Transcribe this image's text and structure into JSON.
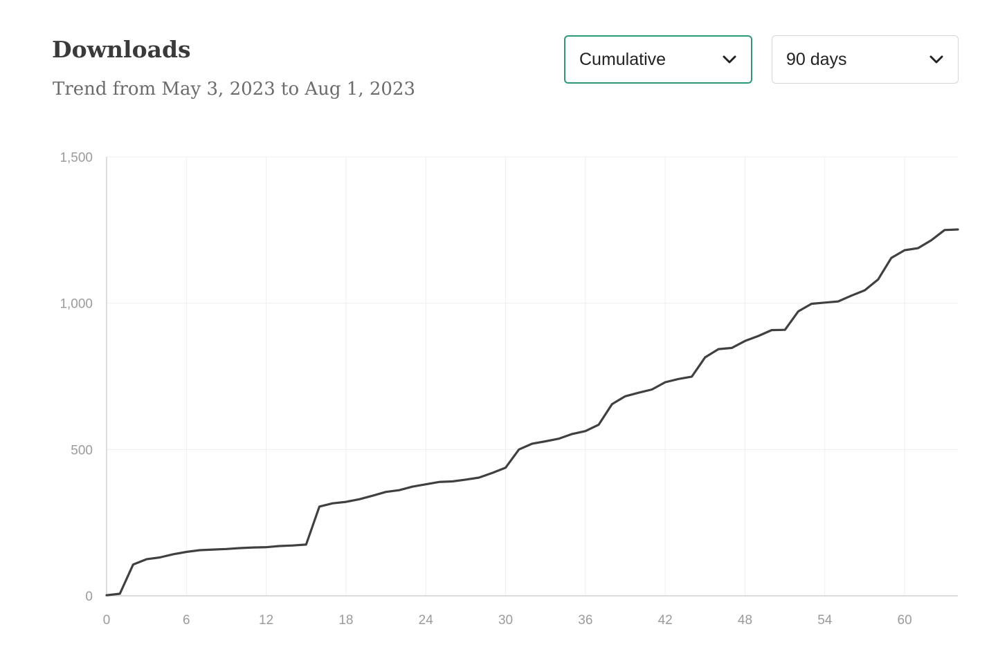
{
  "header": {
    "title": "Downloads",
    "subtitle": "Trend from May 3, 2023 to Aug 1, 2023"
  },
  "controls": {
    "mode": {
      "value": "Cumulative",
      "icon": "chevron-down-icon",
      "accent": "#2a9a72"
    },
    "range": {
      "value": "90 days",
      "icon": "chevron-down-icon"
    }
  },
  "chart_data": {
    "type": "line",
    "title": "Downloads",
    "xlabel": "",
    "ylabel": "",
    "xlim": [
      0,
      64
    ],
    "ylim": [
      0,
      1500
    ],
    "x_ticks": [
      "0",
      "6",
      "12",
      "18",
      "24",
      "30",
      "36",
      "42",
      "48",
      "54",
      "60"
    ],
    "y_ticks": [
      "0",
      "500",
      "1,000",
      "1,500"
    ],
    "grid": true,
    "line_color": "#404040",
    "series": [
      {
        "x": [
          0,
          1,
          2,
          3,
          4,
          5,
          6,
          7,
          8,
          9,
          10,
          11,
          12,
          13,
          14,
          15,
          16,
          17,
          18,
          19,
          20,
          21,
          22,
          23,
          24,
          25,
          26,
          27,
          28,
          29,
          30,
          31,
          32,
          33,
          34,
          35,
          36,
          37,
          38,
          39,
          40,
          41,
          42,
          43,
          44,
          45,
          46,
          47,
          48,
          49,
          50,
          51,
          52,
          53,
          54,
          55,
          56,
          57,
          58,
          59,
          60,
          61,
          62,
          63,
          64
        ],
        "values": [
          2,
          7,
          107,
          125,
          131,
          142,
          150,
          156,
          158,
          160,
          163,
          165,
          166,
          170,
          172,
          175,
          305,
          316,
          321,
          330,
          342,
          355,
          361,
          373,
          381,
          389,
          391,
          397,
          404,
          420,
          438,
          500,
          520,
          528,
          537,
          553,
          563,
          585,
          655,
          682,
          694,
          705,
          730,
          741,
          749,
          815,
          843,
          847,
          871,
          888,
          908,
          909,
          972,
          998,
          1002,
          1006,
          1026,
          1044,
          1081,
          1155,
          1181,
          1188,
          1215,
          1250,
          1252
        ]
      }
    ]
  }
}
